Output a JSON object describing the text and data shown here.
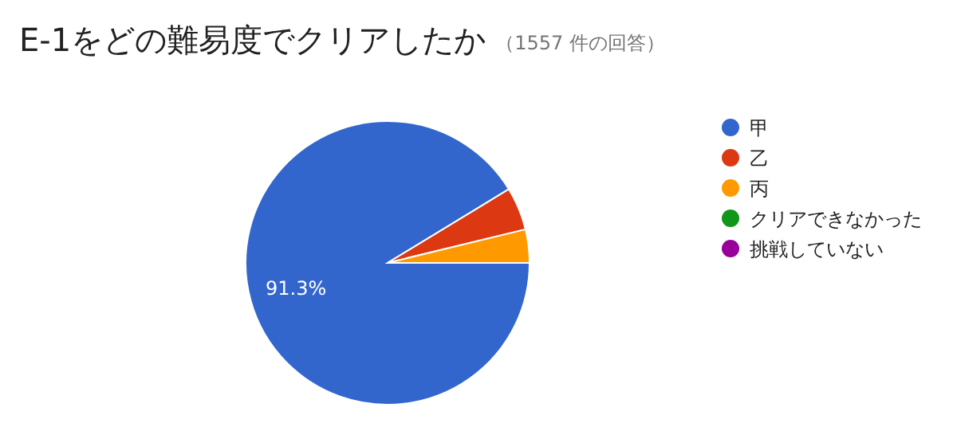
{
  "chart_data": {
    "type": "pie",
    "title": "E-1をどの難易度でクリアしたか",
    "subtitle": "（1557 件の回答）",
    "categories": [
      "甲",
      "乙",
      "丙",
      "クリアできなかった",
      "挑戦していない"
    ],
    "values": [
      91.3,
      4.9,
      3.8,
      0,
      0
    ],
    "value_labels": [
      "91.3%",
      null,
      null,
      null,
      null
    ],
    "colors": [
      "#3366cc",
      "#dc3912",
      "#ff9900",
      "#109618",
      "#990099"
    ],
    "legend": "right"
  }
}
